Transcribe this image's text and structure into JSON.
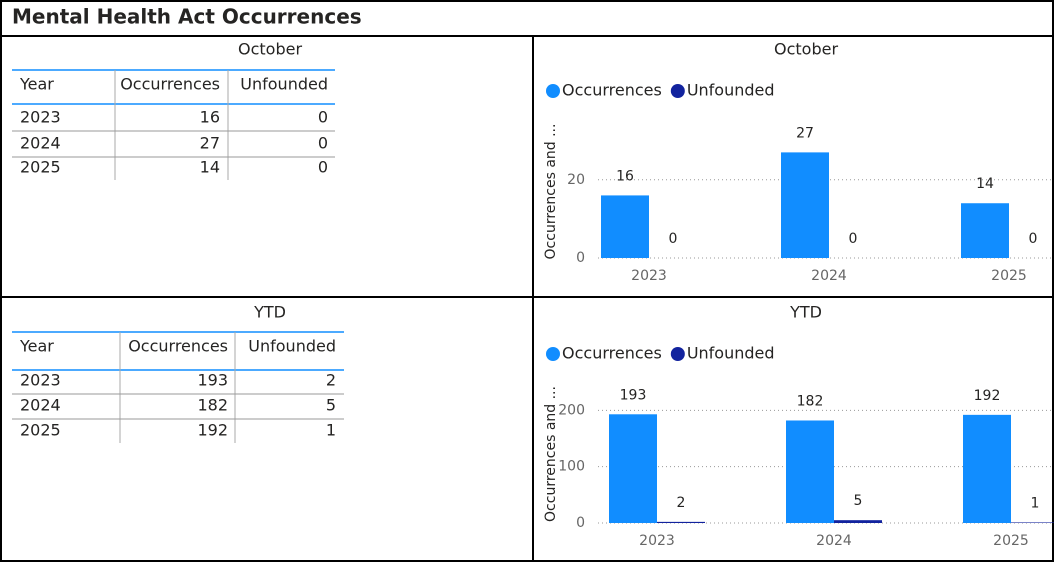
{
  "title": "Mental Health Act Occurrences",
  "tables": [
    {
      "title": "October",
      "columns": [
        "Year",
        "Occurrences",
        "Unfounded"
      ],
      "rows": [
        [
          "2023",
          16,
          0
        ],
        [
          "2024",
          27,
          0
        ],
        [
          "2025",
          14,
          0
        ]
      ]
    },
    {
      "title": "YTD",
      "columns": [
        "Year",
        "Occurrences",
        "Unfounded"
      ],
      "rows": [
        [
          "2023",
          193,
          2
        ],
        [
          "2024",
          182,
          5
        ],
        [
          "2025",
          192,
          1
        ]
      ]
    }
  ],
  "chart_data": [
    {
      "type": "bar",
      "title": "October",
      "categories": [
        "2023",
        "2024",
        "2025"
      ],
      "series": [
        {
          "name": "Occurrences",
          "color": "#118dff",
          "values": [
            16,
            27,
            14
          ]
        },
        {
          "name": "Unfounded",
          "color": "#12239e",
          "values": [
            0,
            0,
            0
          ]
        }
      ],
      "y_label": "Occurrences and ...",
      "ylim": [
        0,
        34
      ],
      "yticks": [
        0,
        20
      ],
      "grid": true,
      "legend": "top-left"
    },
    {
      "type": "bar",
      "title": "YTD",
      "categories": [
        "2023",
        "2024",
        "2025"
      ],
      "series": [
        {
          "name": "Occurrences",
          "color": "#118dff",
          "values": [
            193,
            182,
            192
          ]
        },
        {
          "name": "Unfounded",
          "color": "#12239e",
          "values": [
            2,
            5,
            1
          ]
        }
      ],
      "y_label": "Occurrences and ...",
      "ylim": [
        0,
        245
      ],
      "yticks": [
        0,
        100,
        200
      ],
      "grid": true,
      "legend": "top-left"
    }
  ]
}
